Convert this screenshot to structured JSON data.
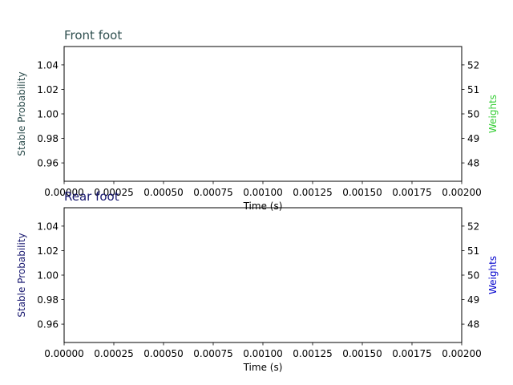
{
  "chart_data": [
    {
      "type": "line",
      "title": "Front foot",
      "xlabel": "Time (s)",
      "ylabel_left": "Stable Probability",
      "ylabel_right": "Weights",
      "xlim": [
        0.0,
        0.002
      ],
      "ylim_left": [
        0.945,
        1.055
      ],
      "ylim_right": [
        47.25,
        52.75
      ],
      "xticks": [
        "0.00000",
        "0.00025",
        "0.00050",
        "0.00075",
        "0.00100",
        "0.00125",
        "0.00150",
        "0.00175",
        "0.00200"
      ],
      "yticks_left": [
        "0.96",
        "0.98",
        "1.00",
        "1.02",
        "1.04"
      ],
      "yticks_right": [
        "48",
        "49",
        "50",
        "51",
        "52"
      ],
      "series": [],
      "colors": {
        "title": "#2f4f4f",
        "left_label": "#2f4f4f",
        "right_label": "#32cd32"
      }
    },
    {
      "type": "line",
      "title": "Rear foot",
      "xlabel": "Time (s)",
      "ylabel_left": "Stable Probability",
      "ylabel_right": "Weights",
      "xlim": [
        0.0,
        0.002
      ],
      "ylim_left": [
        0.945,
        1.055
      ],
      "ylim_right": [
        47.25,
        52.75
      ],
      "xticks": [
        "0.00000",
        "0.00025",
        "0.00050",
        "0.00075",
        "0.00100",
        "0.00125",
        "0.00150",
        "0.00175",
        "0.00200"
      ],
      "yticks_left": [
        "0.96",
        "0.98",
        "1.00",
        "1.02",
        "1.04"
      ],
      "yticks_right": [
        "48",
        "49",
        "50",
        "51",
        "52"
      ],
      "series": [],
      "colors": {
        "title": "#191970",
        "left_label": "#191970",
        "right_label": "#0000cd"
      }
    }
  ]
}
